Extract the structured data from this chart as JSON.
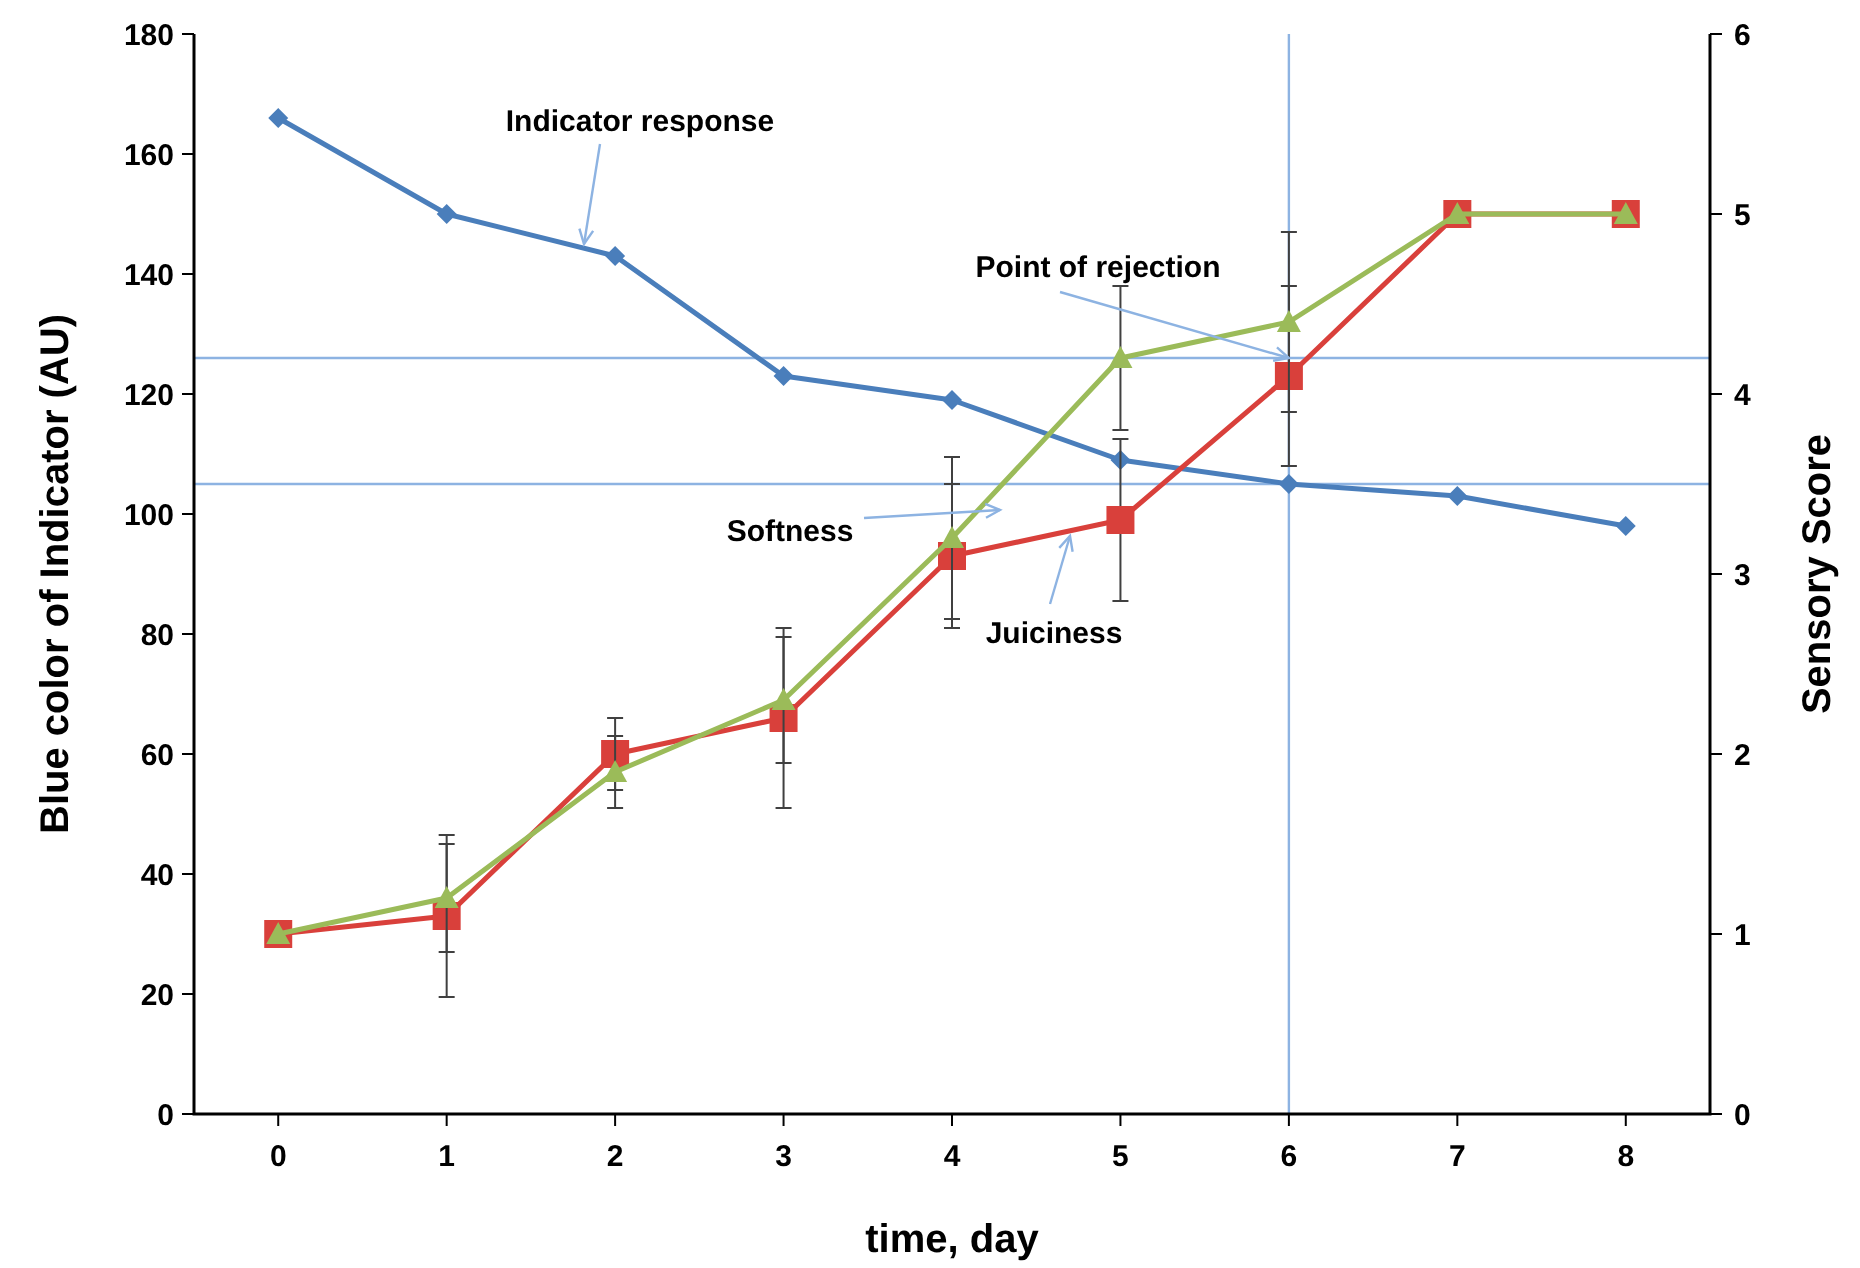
{
  "chart_data": {
    "type": "line",
    "xlabel": "time, day",
    "ylabel": "Blue color of Indicator (AU)",
    "y2label": "Sensory Score",
    "x": [
      0,
      1,
      2,
      3,
      4,
      5,
      6,
      7,
      8
    ],
    "xlim": [
      -0.5,
      8.5
    ],
    "xticks": [
      0,
      1,
      2,
      3,
      4,
      5,
      6,
      7,
      8
    ],
    "ylim": [
      0,
      180
    ],
    "yticks": [
      0,
      20,
      40,
      60,
      80,
      100,
      120,
      140,
      160,
      180
    ],
    "y2lim": [
      0,
      6
    ],
    "y2ticks": [
      0,
      1,
      2,
      3,
      4,
      5,
      6
    ],
    "series": [
      {
        "name": "Indicator response",
        "color": "#4a7ebb",
        "marker": "diamond",
        "values": [
          166,
          150,
          143,
          123,
          119,
          109,
          105,
          103,
          98
        ]
      },
      {
        "name": "Juiciness",
        "color": "#d9403b",
        "marker": "square",
        "axis": "y2",
        "values": [
          1.0,
          1.1,
          2.0,
          2.2,
          3.1,
          3.3,
          4.1,
          5,
          5
        ],
        "errors": [
          null,
          0.45,
          0.2,
          0.5,
          0.4,
          0.45,
          0.5,
          null,
          null
        ]
      },
      {
        "name": "Softness",
        "color": "#9bbb59",
        "marker": "triangle",
        "axis": "y2",
        "values": [
          1.0,
          1.2,
          1.9,
          2.3,
          3.2,
          4.2,
          4.4,
          5,
          5
        ],
        "errors": [
          null,
          0.3,
          0.2,
          0.35,
          0.45,
          0.4,
          0.5,
          null,
          null
        ]
      }
    ],
    "ref_lines": [
      {
        "axis": "y",
        "value": 105,
        "color": "#8db3e2"
      },
      {
        "axis": "y2",
        "value": 4.2,
        "color": "#8db3e2"
      },
      {
        "axis": "x",
        "value": 6,
        "color": "#8db3e2"
      }
    ],
    "annotations": [
      {
        "text": "Point of rejection",
        "x": 6,
        "y": 126
      }
    ],
    "legend": false,
    "grid": false
  }
}
